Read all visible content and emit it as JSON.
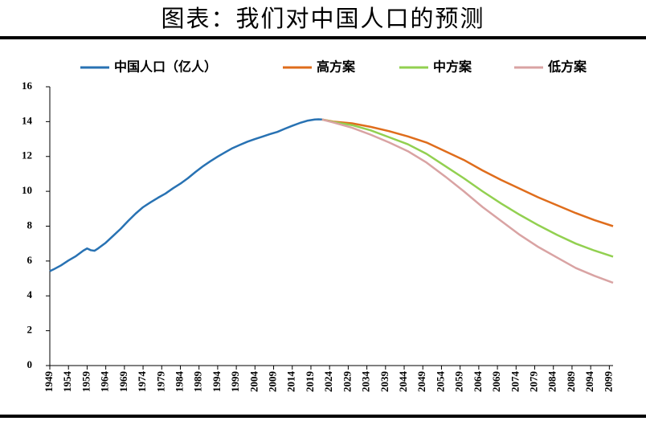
{
  "chart_data": {
    "type": "line",
    "title": "图表：我们对中国人口的预测",
    "xlim": [
      1949,
      2100
    ],
    "xticks": [
      1949,
      1954,
      1959,
      1964,
      1969,
      1974,
      1979,
      1984,
      1989,
      1994,
      1999,
      2004,
      2009,
      2014,
      2019,
      2024,
      2029,
      2034,
      2039,
      2044,
      2049,
      2054,
      2059,
      2064,
      2069,
      2074,
      2079,
      2084,
      2089,
      2094,
      2099
    ],
    "ylim": [
      0,
      16
    ],
    "yticks": [
      0,
      2,
      4,
      6,
      8,
      10,
      12,
      14,
      16
    ],
    "grid": false,
    "series": [
      {
        "name": "中国人口（亿人）",
        "color": "#2872b3",
        "x": [
          1949,
          1950,
          1952,
          1954,
          1956,
          1958,
          1959,
          1960,
          1961,
          1962,
          1964,
          1966,
          1968,
          1970,
          1972,
          1974,
          1976,
          1978,
          1980,
          1982,
          1984,
          1986,
          1988,
          1990,
          1992,
          1994,
          1996,
          1998,
          2000,
          2002,
          2004,
          2006,
          2008,
          2010,
          2012,
          2014,
          2016,
          2018,
          2020,
          2021,
          2022
        ],
        "values": [
          5.42,
          5.52,
          5.75,
          6.03,
          6.28,
          6.6,
          6.72,
          6.62,
          6.59,
          6.73,
          7.05,
          7.45,
          7.85,
          8.3,
          8.72,
          9.09,
          9.37,
          9.63,
          9.87,
          10.17,
          10.44,
          10.75,
          11.1,
          11.43,
          11.72,
          11.99,
          12.24,
          12.48,
          12.67,
          12.85,
          13.0,
          13.14,
          13.28,
          13.41,
          13.59,
          13.76,
          13.92,
          14.05,
          14.12,
          14.13,
          14.12
        ]
      },
      {
        "name": "高方案",
        "color": "#df6d1c",
        "x": [
          2022,
          2025,
          2030,
          2035,
          2040,
          2045,
          2050,
          2055,
          2060,
          2065,
          2070,
          2075,
          2080,
          2085,
          2090,
          2095,
          2100
        ],
        "values": [
          14.12,
          14.0,
          13.9,
          13.7,
          13.45,
          13.15,
          12.8,
          12.3,
          11.8,
          11.2,
          10.65,
          10.15,
          9.65,
          9.2,
          8.75,
          8.35,
          8.0
        ]
      },
      {
        "name": "中方案",
        "color": "#92d050",
        "x": [
          2022,
          2025,
          2030,
          2035,
          2040,
          2045,
          2050,
          2055,
          2060,
          2065,
          2070,
          2075,
          2080,
          2085,
          2090,
          2095,
          2100
        ],
        "values": [
          14.12,
          13.98,
          13.8,
          13.5,
          13.1,
          12.7,
          12.15,
          11.45,
          10.75,
          10.0,
          9.3,
          8.65,
          8.05,
          7.5,
          7.0,
          6.6,
          6.25
        ]
      },
      {
        "name": "低方案",
        "color": "#d9a3a3",
        "x": [
          2022,
          2025,
          2030,
          2035,
          2040,
          2045,
          2050,
          2055,
          2060,
          2065,
          2070,
          2075,
          2080,
          2085,
          2090,
          2095,
          2100
        ],
        "values": [
          14.12,
          13.95,
          13.65,
          13.25,
          12.8,
          12.3,
          11.65,
          10.85,
          10.0,
          9.1,
          8.3,
          7.5,
          6.8,
          6.2,
          5.6,
          5.15,
          4.75
        ]
      }
    ]
  }
}
